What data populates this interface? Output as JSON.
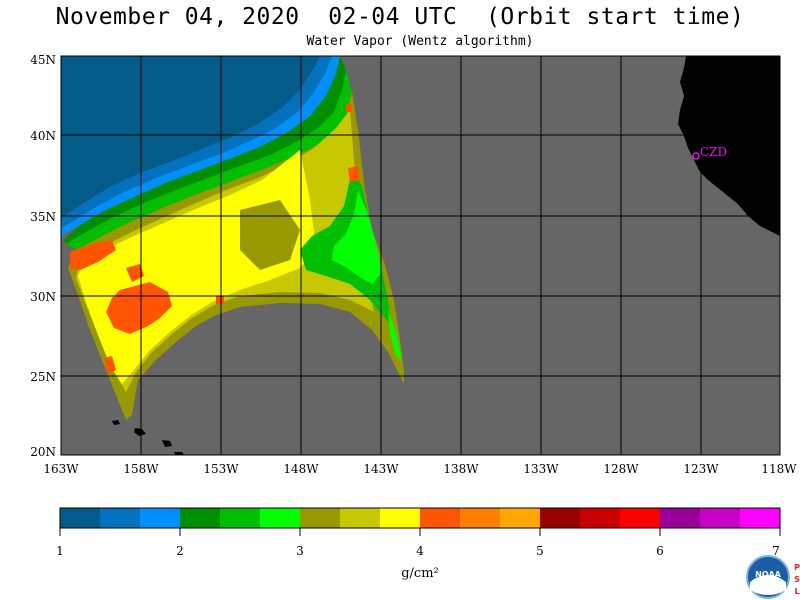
{
  "header": {
    "title": "November 04, 2020  02-04 UTC  (Orbit start time)",
    "subtitle": "Water Vapor (Wentz algorithm)"
  },
  "map": {
    "lat_labels": [
      "45N",
      "40N",
      "35N",
      "30N",
      "25N",
      "20N"
    ],
    "lon_labels": [
      "163W",
      "158W",
      "153W",
      "148W",
      "143W",
      "138W",
      "133W",
      "128W",
      "123W",
      "118W"
    ],
    "station_label": "CZD",
    "colors": {
      "land": "#000000",
      "no_data": "#666666",
      "grid": "#000000",
      "station": "#ff00ff"
    }
  },
  "colorbar": {
    "tick_labels": [
      "1",
      "2",
      "3",
      "4",
      "5",
      "6",
      "7"
    ],
    "unit_label": "g/cm²",
    "colors": [
      "#035b89",
      "#0272bf",
      "#008ffb",
      "#008f00",
      "#00bf00",
      "#00ff00",
      "#989800",
      "#c8c800",
      "#ffff00",
      "#ff5400",
      "#ff7f00",
      "#ffa600",
      "#980000",
      "#c80000",
      "#ff0000",
      "#980098",
      "#c800c8",
      "#ff00ff"
    ]
  },
  "logo": {
    "text": "NOAA",
    "side_letters": [
      "P",
      "S",
      "L"
    ]
  }
}
